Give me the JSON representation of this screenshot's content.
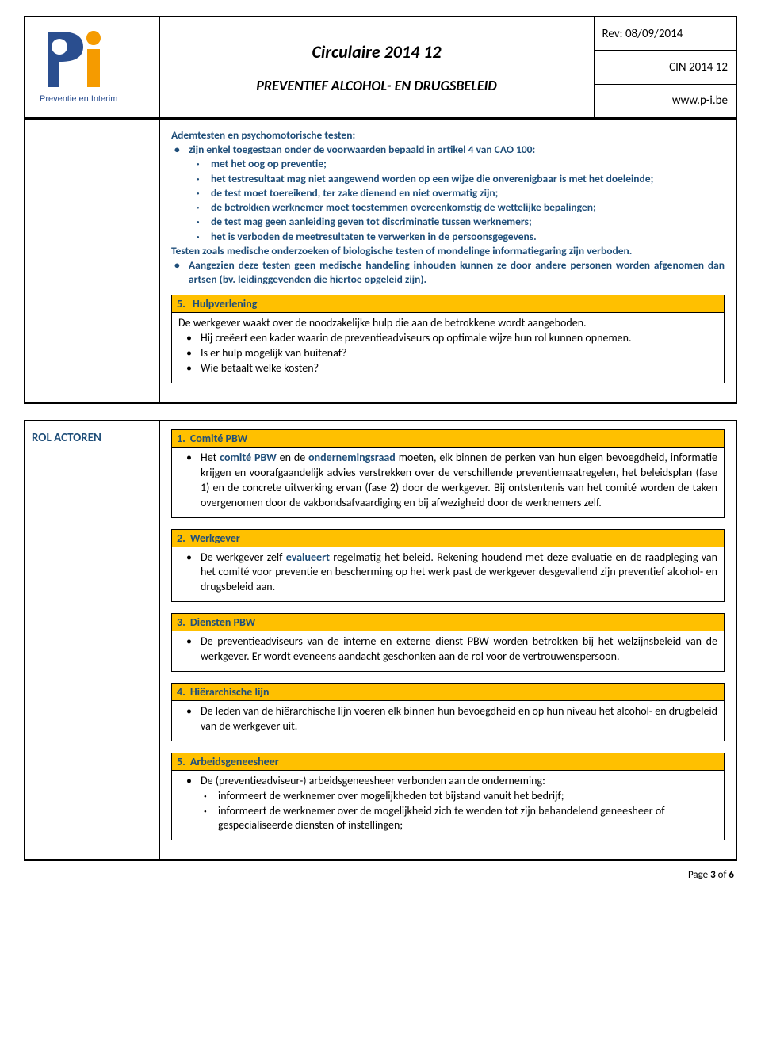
{
  "header": {
    "title": "Circulaire 2014 12",
    "subtitle": "PREVENTIEF ALCOHOL- EN DRUGSBELEID",
    "rev": "Rev: 08/09/2014",
    "cin": "CIN 2014 12",
    "url": "www.p-i.be",
    "logo_brand_text": "Preventie en Interim"
  },
  "colors": {
    "orange": "#ffc000",
    "blue": "#1f4e79",
    "logo_blue": "#2a4e8f",
    "logo_orange": "#f59b00",
    "text": "#000000"
  },
  "top_box": {
    "intro": {
      "heading": "Ademtesten en psychomotorische testen:",
      "bullet1": "zijn enkel toegestaan onder de voorwaarden bepaald in artikel 4 van CAO 100:",
      "dots": [
        "met het oog op preventie;",
        "het testresultaat mag niet aangewend worden op een wijze die onverenigbaar is met het doeleinde;",
        "de test moet toereikend, ter zake dienend en niet overmatig zijn;",
        "de betrokken werknemer moet toestemmen overeenkomstig de wettelijke bepalingen;",
        "de test mag geen aanleiding geven tot discriminatie tussen werknemers;",
        "het is verboden de meetresultaten te verwerken in de persoonsgegevens."
      ],
      "line2": "Testen zoals medische onderzoeken of biologische testen of mondelinge informatiegaring zijn verboden.",
      "bullet2": "Aangezien deze testen geen medische handeling inhouden kunnen ze door andere personen worden afgenomen dan artsen (bv. leidinggevenden die hiertoe opgeleid zijn)."
    },
    "section5": {
      "num": "5.",
      "title": "Hulpverlening",
      "line1": "De werkgever waakt over de noodzakelijke hulp die aan de betrokkene wordt aangeboden.",
      "bullets": [
        "Hij creëert een kader waarin de preventieadviseurs op optimale wijze hun rol kunnen opnemen.",
        "Is er hulp mogelijk van buitenaf?",
        "Wie betaalt welke kosten?"
      ]
    }
  },
  "rol_actoren": {
    "label": "ROL ACTOREN",
    "sections": [
      {
        "num": "1.",
        "title": "Comité PBW",
        "body_parts": [
          {
            "t": "plain",
            "text": "Het "
          },
          {
            "t": "bold",
            "text": "comité PBW"
          },
          {
            "t": "plain",
            "text": " en de "
          },
          {
            "t": "bold",
            "text": "ondernemingsraad"
          },
          {
            "t": "plain",
            "text": " moeten, elk binnen de perken van hun eigen bevoegdheid, informatie krijgen en voorafgaandelijk advies verstrekken over de verschillende preventiemaatregelen, het beleidsplan (fase 1) en de concrete uitwerking ervan (fase 2) door de werkgever. Bij ontstentenis van het comité worden de taken overgenomen door de vakbondsafvaardiging en bij afwezigheid door de werknemers zelf."
          }
        ]
      },
      {
        "num": "2.",
        "title": "Werkgever",
        "body_parts": [
          {
            "t": "plain",
            "text": "De werkgever zelf "
          },
          {
            "t": "bold",
            "text": "evalueert"
          },
          {
            "t": "plain",
            "text": " regelmatig het beleid. Rekening houdend met deze evaluatie en de raadpleging van het comité voor preventie en bescherming op het werk past de werkgever desgevallend zijn preventief alcohol- en drugsbeleid aan."
          }
        ]
      },
      {
        "num": "3.",
        "title": "Diensten PBW",
        "body_parts": [
          {
            "t": "plain",
            "text": "De preventieadviseurs van de interne en externe dienst PBW worden betrokken bij het welzijnsbeleid van de werkgever. Er wordt eveneens aandacht geschonken aan de rol voor de vertrouwenspersoon."
          }
        ]
      },
      {
        "num": "4.",
        "title": "Hiërarchische lijn",
        "body_parts": [
          {
            "t": "plain",
            "text": "De leden van de hiërarchische lijn voeren elk binnen hun bevoegdheid en op hun niveau het alcohol- en drugbeleid van de werkgever uit."
          }
        ]
      },
      {
        "num": "5.",
        "title": "Arbeidsgeneesheer",
        "intro": "De (preventieadviseur-) arbeidsgeneesheer verbonden aan de onderneming:",
        "dots": [
          "informeert de werknemer over mogelijkheden tot bijstand vanuit het bedrijf;",
          "informeert de werknemer over de mogelijkheid zich te wenden tot zijn behandelend geneesheer of gespecialiseerde diensten of instellingen;"
        ]
      }
    ]
  },
  "footer": {
    "page_label": "Page",
    "current": "3",
    "of": "of",
    "total": "6"
  }
}
